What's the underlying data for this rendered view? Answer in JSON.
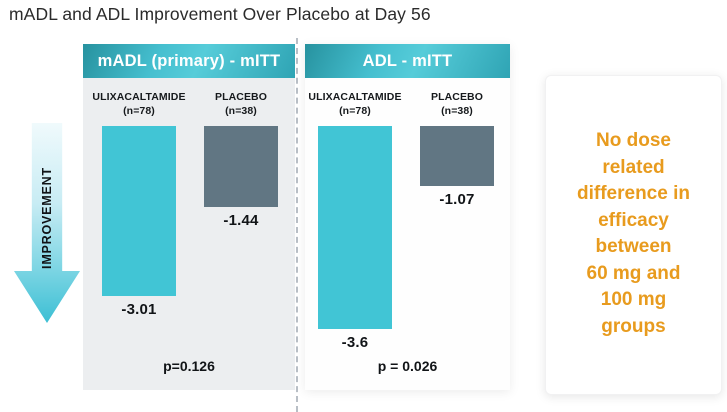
{
  "title": "mADL and ADL Improvement Over Placebo at Day 56",
  "improvement_arrow": {
    "label": "IMPROVEMENT"
  },
  "panels": [
    {
      "header": "mADL (primary) - mITT",
      "p_value": "p=0.126",
      "bars": [
        {
          "group": "ULIXACALTAMIDE",
          "n": "(n=78)",
          "value": "-3.01"
        },
        {
          "group": "PLACEBO",
          "n": "(n=38)",
          "value": "-1.44"
        }
      ]
    },
    {
      "header": "ADL - mITT",
      "p_value": "p = 0.026",
      "bars": [
        {
          "group": "ULIXACALTAMIDE",
          "n": "(n=78)",
          "value": "-3.6"
        },
        {
          "group": "PLACEBO",
          "n": "(n=38)",
          "value": "-1.07"
        }
      ]
    }
  ],
  "note": {
    "lines": [
      "No dose",
      "related",
      "difference in",
      "efficacy",
      "between",
      "60 mg and",
      "100 mg",
      "groups"
    ]
  },
  "colors": {
    "drug_bar": "#41c5d5",
    "placebo_bar": "#617683",
    "header_teal": "#35aec0",
    "note_orange": "#e89b1e",
    "left_panel_bg": "#eceef0",
    "arrow_teal": "#3cbfd4"
  },
  "chart_data": [
    {
      "type": "bar",
      "title": "mADL (primary) - mITT",
      "categories": [
        "ULIXACALTAMIDE (n=78)",
        "PLACEBO (n=38)"
      ],
      "values": [
        -3.01,
        -1.44
      ],
      "ylim": [
        -3.8,
        0
      ],
      "orientation": "bars-extend-downward-from-zero",
      "annotations": [
        "p=0.126"
      ],
      "bar_colors": [
        "#41c5d5",
        "#617683"
      ]
    },
    {
      "type": "bar",
      "title": "ADL - mITT",
      "categories": [
        "ULIXACALTAMIDE (n=78)",
        "PLACEBO (n=38)"
      ],
      "values": [
        -3.6,
        -1.07
      ],
      "ylim": [
        -3.8,
        0
      ],
      "orientation": "bars-extend-downward-from-zero",
      "annotations": [
        "p = 0.026"
      ],
      "bar_colors": [
        "#41c5d5",
        "#617683"
      ]
    }
  ]
}
